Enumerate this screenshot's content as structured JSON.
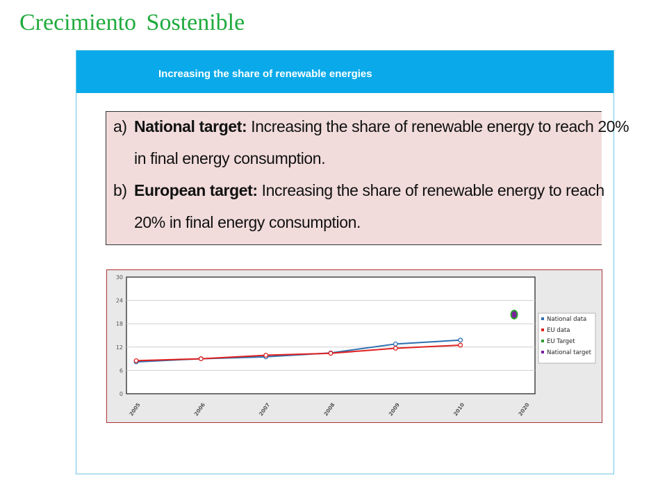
{
  "slide": {
    "title": "Crecimiento  Sostenible"
  },
  "panel": {
    "header": "Increasing the share of renewable energies"
  },
  "targets": [
    {
      "marker": "a)",
      "label": "National target:",
      "text": " Increasing the share of renewable energy to reach 20%",
      "continuation": "in final energy consumption."
    },
    {
      "marker": "b)",
      "label": "European target:",
      "text": " Increasing the share of renewable energy to reach",
      "continuation": "20% in final energy consumption."
    }
  ],
  "colors": {
    "title": "#1faa3c",
    "header_bg": "#0aaaea",
    "national": "#2c6fb0",
    "eu": "#e02020",
    "eu_target": "#2e9e2e",
    "national_target": "#7a1fa0"
  },
  "chart_data": {
    "type": "line",
    "categories": [
      "2005",
      "2006",
      "2007",
      "2008",
      "2009",
      "2010",
      "2020"
    ],
    "series": [
      {
        "name": "National data",
        "values": [
          8.2,
          9.0,
          9.5,
          10.5,
          12.8,
          13.8,
          null
        ]
      },
      {
        "name": "EU data",
        "values": [
          8.5,
          9.0,
          9.9,
          10.4,
          11.7,
          12.5,
          null
        ]
      },
      {
        "name": "EU Target",
        "values": [
          null,
          null,
          null,
          null,
          null,
          null,
          20
        ]
      },
      {
        "name": "National target",
        "values": [
          null,
          null,
          null,
          null,
          null,
          null,
          20
        ]
      }
    ],
    "yticks": [
      0,
      6,
      12,
      18,
      24,
      30
    ],
    "ylim": [
      0,
      30
    ],
    "grid": true,
    "legend_position": "right"
  }
}
